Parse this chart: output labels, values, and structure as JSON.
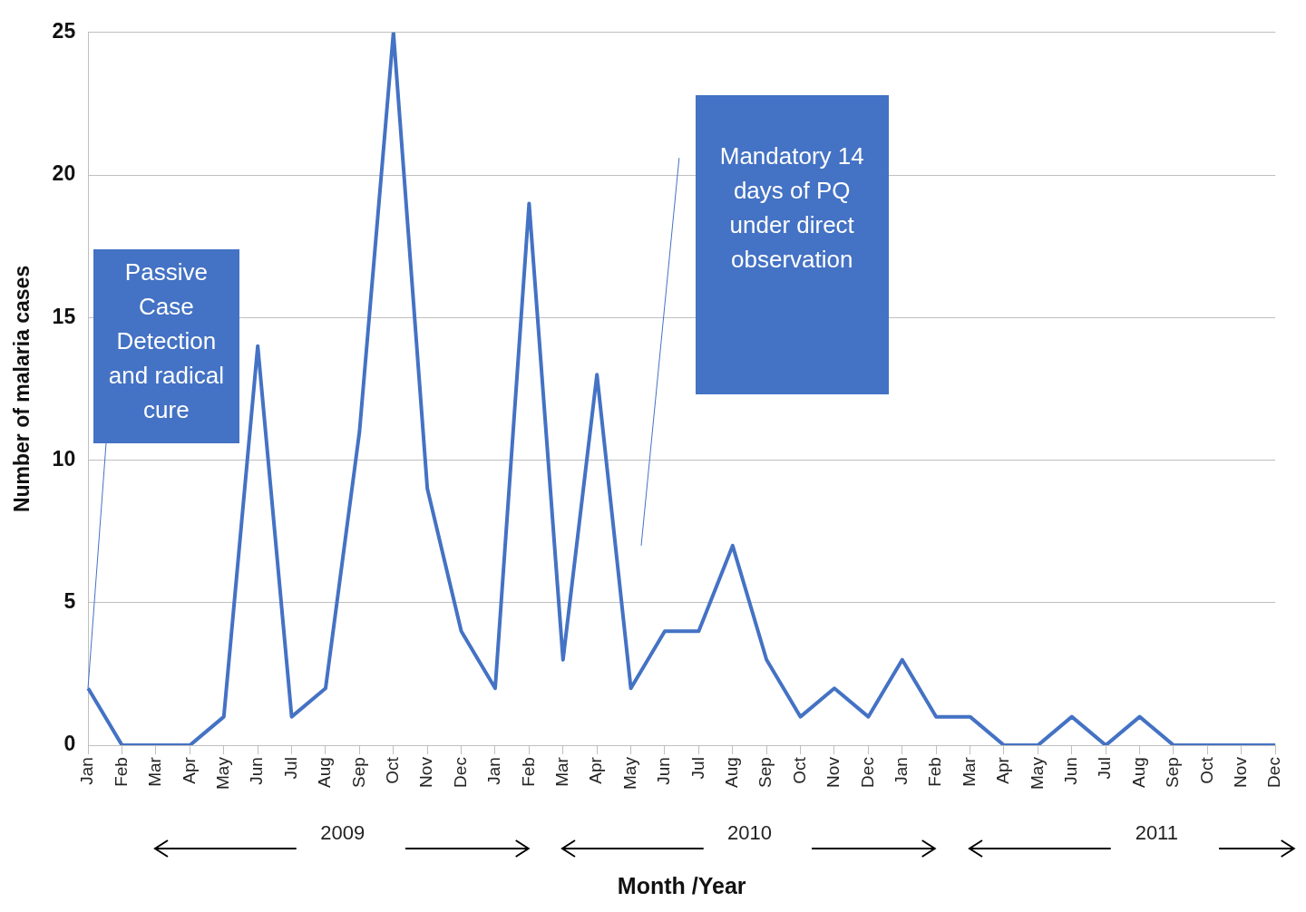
{
  "chart_data": {
    "type": "line",
    "xlabel": "Month /Year",
    "ylabel": "Number of malaria cases",
    "categories": [
      "Jan",
      "Feb",
      "Mar",
      "Apr",
      "May",
      "Jun",
      "Jul",
      "Aug",
      "Sep",
      "Oct",
      "Nov",
      "Dec",
      "Jan",
      "Feb",
      "Mar",
      "Apr",
      "May",
      "Jun",
      "Jul",
      "Aug",
      "Sep",
      "Oct",
      "Nov",
      "Dec",
      "Jan",
      "Feb",
      "Mar",
      "Apr",
      "May",
      "Jun",
      "Jul",
      "Aug",
      "Sep",
      "Oct",
      "Nov",
      "Dec"
    ],
    "series": [
      {
        "color": "#4472c4",
        "values": [
          2,
          0,
          0,
          0,
          1,
          14,
          1,
          2,
          11,
          25,
          9,
          4,
          2,
          19,
          3,
          13,
          2,
          4,
          4,
          7,
          3,
          1,
          2,
          1,
          3,
          1,
          1,
          0,
          0,
          1,
          0,
          1,
          0,
          0,
          0,
          0
        ]
      }
    ],
    "ylim": [
      0,
      25
    ],
    "yticks": [
      0,
      5,
      10,
      15,
      20,
      25
    ],
    "grid": "y",
    "legend": false,
    "marker": "none",
    "line_style": "solid",
    "annotations": [
      "Passive Case Detection and radical cure",
      "Mandatory 14 days of PQ under direct observation",
      "2009",
      "2010",
      "2011"
    ]
  }
}
